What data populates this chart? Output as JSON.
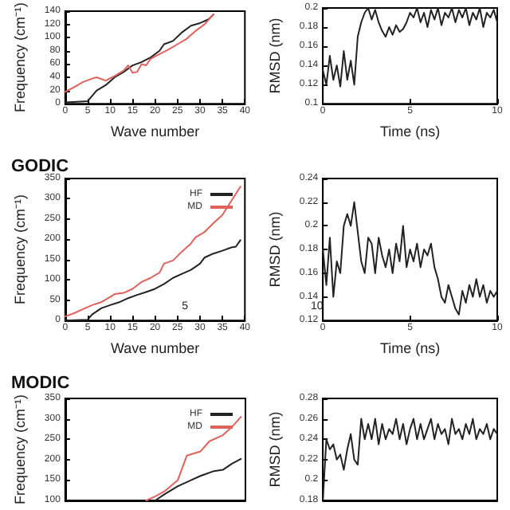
{
  "chart_data": [
    {
      "type": "line",
      "xlabel": "Wave number",
      "ylabel": "Frequency (cm⁻¹)",
      "xlim": [
        0,
        40
      ],
      "ylim": [
        0,
        140
      ],
      "xticks": [
        0,
        5,
        10,
        15,
        20,
        25,
        30,
        35,
        40
      ],
      "yticks": [
        0,
        20,
        40,
        60,
        80,
        100,
        120,
        140
      ],
      "series": [
        {
          "color": "#222222",
          "x": [
            0,
            5,
            7,
            9,
            11,
            13,
            15,
            17,
            19,
            21,
            22,
            24,
            26,
            28,
            30,
            32,
            33
          ],
          "values": [
            2,
            4,
            20,
            28,
            40,
            48,
            58,
            63,
            70,
            80,
            90,
            95,
            108,
            118,
            122,
            128,
            135
          ]
        },
        {
          "color": "#e0605a",
          "x": [
            0,
            2,
            4,
            6,
            7,
            9,
            11,
            13,
            14,
            15,
            16,
            17,
            18,
            19,
            21,
            23,
            25,
            27,
            29,
            31,
            33
          ],
          "values": [
            18,
            25,
            33,
            38,
            40,
            35,
            42,
            50,
            58,
            47,
            48,
            60,
            58,
            68,
            75,
            82,
            90,
            98,
            110,
            120,
            135
          ]
        }
      ]
    },
    {
      "type": "line",
      "xlabel": "Time (ns)",
      "ylabel": "RMSD (nm)",
      "xlim": [
        0,
        10
      ],
      "ylim": [
        0.1,
        0.2
      ],
      "xticks": [
        0,
        5,
        10
      ],
      "yticks": [
        0.1,
        0.12,
        0.14,
        0.16,
        0.18,
        0.2
      ],
      "x": [
        0,
        0.2,
        0.4,
        0.6,
        0.8,
        1,
        1.2,
        1.4,
        1.6,
        1.8,
        2,
        2.2,
        2.4,
        2.6,
        2.8,
        3,
        3.2,
        3.4,
        3.6,
        3.8,
        4,
        4.2,
        4.4,
        4.6,
        4.8,
        5,
        5.2,
        5.4,
        5.6,
        5.8,
        6,
        6.2,
        6.4,
        6.6,
        6.8,
        7,
        7.2,
        7.4,
        7.6,
        7.8,
        8,
        8.2,
        8.4,
        8.6,
        8.8,
        9,
        9.2,
        9.4,
        9.6,
        9.8,
        10
      ],
      "series": [
        {
          "color": "#222222",
          "values": [
            0.135,
            0.12,
            0.15,
            0.125,
            0.14,
            0.118,
            0.155,
            0.125,
            0.145,
            0.12,
            0.17,
            0.185,
            0.195,
            0.2,
            0.188,
            0.198,
            0.185,
            0.176,
            0.17,
            0.18,
            0.172,
            0.182,
            0.175,
            0.178,
            0.185,
            0.195,
            0.19,
            0.2,
            0.185,
            0.195,
            0.18,
            0.198,
            0.188,
            0.2,
            0.182,
            0.195,
            0.19,
            0.2,
            0.185,
            0.198,
            0.19,
            0.2,
            0.182,
            0.195,
            0.188,
            0.2,
            0.18,
            0.195,
            0.19,
            0.198,
            0.185
          ]
        }
      ]
    },
    {
      "type": "line",
      "title": "GODIC",
      "xlabel": "Wave number",
      "ylabel": "Frequency (cm⁻¹)",
      "xlim": [
        0,
        40
      ],
      "ylim": [
        0,
        350
      ],
      "xticks": [
        0,
        5,
        10,
        15,
        20,
        25,
        30,
        35,
        40
      ],
      "yticks": [
        0,
        50,
        100,
        150,
        200,
        250,
        300,
        350
      ],
      "legend": "top right",
      "annotations": [
        "5"
      ],
      "series": [
        {
          "name": "HF",
          "color": "#222222",
          "x": [
            0,
            5,
            6,
            8,
            10,
            12,
            14,
            16,
            18,
            20,
            22,
            24,
            26,
            28,
            30,
            31,
            33,
            35,
            37,
            38,
            39
          ],
          "values": [
            0,
            2,
            15,
            30,
            38,
            45,
            55,
            63,
            70,
            78,
            90,
            105,
            115,
            125,
            140,
            155,
            165,
            172,
            180,
            182,
            198
          ]
        },
        {
          "name": "MD",
          "color": "#e0605a",
          "x": [
            0,
            2,
            4,
            6,
            8,
            10,
            11,
            13,
            15,
            17,
            19,
            21,
            22,
            24,
            26,
            28,
            29,
            31,
            33,
            35,
            37,
            39
          ],
          "values": [
            10,
            18,
            28,
            38,
            45,
            58,
            65,
            68,
            78,
            95,
            105,
            118,
            140,
            148,
            170,
            190,
            205,
            218,
            240,
            260,
            295,
            330
          ]
        }
      ]
    },
    {
      "type": "line",
      "xlabel": "Time (ns)",
      "ylabel": "RMSD (nm)",
      "xlim": [
        0,
        10
      ],
      "ylim": [
        0.12,
        0.24
      ],
      "xticks": [
        0,
        5,
        10
      ],
      "yticks": [
        0.12,
        0.14,
        0.16,
        0.18,
        0.2,
        0.22,
        0.24
      ],
      "annotations": [
        "10"
      ],
      "x": [
        0,
        0.2,
        0.4,
        0.6,
        0.8,
        1,
        1.2,
        1.4,
        1.6,
        1.8,
        2,
        2.2,
        2.4,
        2.6,
        2.8,
        3,
        3.2,
        3.4,
        3.6,
        3.8,
        4,
        4.2,
        4.4,
        4.6,
        4.8,
        5,
        5.2,
        5.4,
        5.6,
        5.8,
        6,
        6.2,
        6.4,
        6.6,
        6.8,
        7,
        7.2,
        7.4,
        7.6,
        7.8,
        8,
        8.2,
        8.4,
        8.6,
        8.8,
        9,
        9.2,
        9.4,
        9.6,
        9.8,
        10
      ],
      "series": [
        {
          "color": "#222222",
          "values": [
            0.18,
            0.15,
            0.19,
            0.14,
            0.17,
            0.16,
            0.2,
            0.21,
            0.2,
            0.22,
            0.195,
            0.17,
            0.16,
            0.19,
            0.185,
            0.16,
            0.19,
            0.175,
            0.165,
            0.18,
            0.16,
            0.185,
            0.17,
            0.2,
            0.165,
            0.18,
            0.17,
            0.185,
            0.165,
            0.18,
            0.175,
            0.185,
            0.165,
            0.155,
            0.14,
            0.135,
            0.15,
            0.14,
            0.13,
            0.125,
            0.145,
            0.135,
            0.15,
            0.14,
            0.155,
            0.14,
            0.15,
            0.135,
            0.145,
            0.14,
            0.145
          ]
        }
      ]
    },
    {
      "type": "line",
      "title": "MODIC",
      "ylabel": "Frequency (cm⁻¹)",
      "xlim": [
        0,
        40
      ],
      "ylim": [
        100,
        350
      ],
      "yticks": [
        100,
        150,
        200,
        250,
        300,
        350
      ],
      "tick_labels": "y",
      "legend": "top right",
      "series": [
        {
          "name": "HF",
          "color": "#222222",
          "x": [
            20,
            22,
            25,
            28,
            30,
            33,
            35,
            37,
            39
          ],
          "values": [
            100,
            115,
            135,
            150,
            160,
            172,
            175,
            190,
            202
          ]
        },
        {
          "name": "MD",
          "color": "#e0605a",
          "x": [
            18,
            20,
            22,
            25,
            27,
            30,
            32,
            35,
            37,
            39
          ],
          "values": [
            100,
            110,
            122,
            150,
            210,
            220,
            245,
            260,
            280,
            305
          ]
        }
      ]
    },
    {
      "type": "line",
      "ylabel": "RMSD (nm)",
      "xlim": [
        0,
        10
      ],
      "ylim": [
        0.18,
        0.28
      ],
      "yticks": [
        0.18,
        0.2,
        0.22,
        0.24,
        0.26,
        0.28
      ],
      "tick_labels": "y",
      "x": [
        0,
        0.2,
        0.4,
        0.6,
        0.8,
        1,
        1.2,
        1.4,
        1.6,
        1.8,
        2,
        2.2,
        2.4,
        2.6,
        2.8,
        3,
        3.2,
        3.4,
        3.6,
        3.8,
        4,
        4.2,
        4.4,
        4.6,
        4.8,
        5,
        5.2,
        5.4,
        5.6,
        5.8,
        6,
        6.2,
        6.4,
        6.6,
        6.8,
        7,
        7.2,
        7.4,
        7.6,
        7.8,
        8,
        8.2,
        8.4,
        8.6,
        8.8,
        9,
        9.2,
        9.4,
        9.6,
        9.8,
        10
      ],
      "series": [
        {
          "color": "#222222",
          "values": [
            0.18,
            0.24,
            0.23,
            0.235,
            0.22,
            0.225,
            0.21,
            0.23,
            0.245,
            0.22,
            0.215,
            0.26,
            0.24,
            0.255,
            0.24,
            0.26,
            0.235,
            0.255,
            0.24,
            0.25,
            0.245,
            0.26,
            0.24,
            0.255,
            0.235,
            0.25,
            0.26,
            0.24,
            0.255,
            0.24,
            0.25,
            0.26,
            0.24,
            0.255,
            0.245,
            0.25,
            0.235,
            0.26,
            0.245,
            0.25,
            0.24,
            0.255,
            0.245,
            0.26,
            0.24,
            0.25,
            0.245,
            0.255,
            0.24,
            0.25,
            0.245
          ]
        }
      ]
    }
  ]
}
